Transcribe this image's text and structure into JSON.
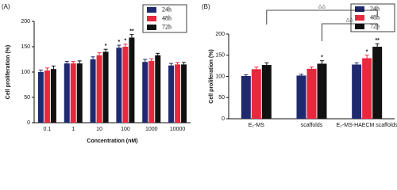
{
  "chart_data": [
    {
      "type": "bar",
      "panel_label": "(A)",
      "y_label": "Cell proliferation (%)",
      "x_label": "Concentration (nM)",
      "categories": [
        "0.1",
        "1",
        "10",
        "100",
        "1000",
        "10000"
      ],
      "series": [
        {
          "name": "24h",
          "color": "#1f2a6e",
          "values": [
            100,
            117,
            125,
            148,
            120,
            113
          ],
          "errors": [
            4,
            4,
            5,
            5,
            5,
            4
          ],
          "stars": [
            null,
            null,
            null,
            "*",
            null,
            null
          ]
        },
        {
          "name": "48h",
          "color": "#e8283c",
          "values": [
            103,
            117,
            133,
            150,
            122,
            115
          ],
          "errors": [
            5,
            4,
            5,
            5,
            4,
            4
          ],
          "stars": [
            null,
            null,
            null,
            "*",
            null,
            null
          ]
        },
        {
          "name": "72h",
          "color": "#111111",
          "values": [
            106,
            117,
            140,
            168,
            133,
            115
          ],
          "errors": [
            6,
            5,
            5,
            6,
            4,
            4
          ],
          "stars": [
            null,
            null,
            "*",
            "**",
            null,
            null
          ]
        }
      ],
      "ylim": [
        0,
        200
      ],
      "yticks": [
        0,
        50,
        100,
        150,
        200
      ]
    },
    {
      "type": "bar",
      "panel_label": "(B)",
      "y_label": "Cell proliferation (%)",
      "categories": [
        "E₂-MS",
        "scaffolds",
        "E₂-MS-HAECM scaffolds"
      ],
      "series": [
        {
          "name": "24h",
          "color": "#1f2a6e",
          "values": [
            101,
            102,
            128
          ],
          "errors": [
            3,
            3,
            4
          ],
          "stars": [
            null,
            null,
            null
          ]
        },
        {
          "name": "48h",
          "color": "#e8283c",
          "values": [
            117,
            118,
            143
          ],
          "errors": [
            5,
            4,
            7
          ],
          "stars": [
            null,
            null,
            "*"
          ]
        },
        {
          "name": "72h",
          "color": "#111111",
          "values": [
            127,
            130,
            170
          ],
          "errors": [
            5,
            7,
            7
          ],
          "stars": [
            null,
            "*",
            "**"
          ]
        }
      ],
      "ylim": [
        0,
        200
      ],
      "yticks": [
        0,
        50,
        100,
        150,
        200
      ],
      "bracket_labels": [
        "△△",
        "△△"
      ]
    }
  ]
}
